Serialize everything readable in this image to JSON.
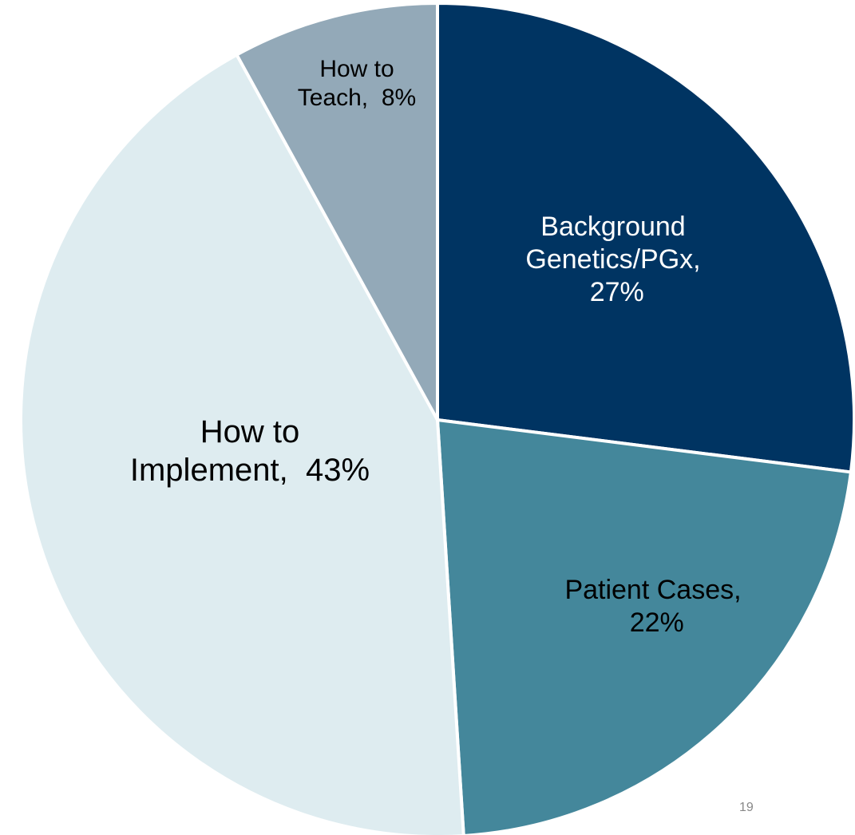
{
  "chart_data": {
    "type": "pie",
    "categories": [
      "Background Genetics/PGx,",
      "Patient Cases,",
      "How to Implement,",
      "How to Teach,"
    ],
    "values": [
      27,
      22,
      43,
      8
    ],
    "value_labels": [
      "27%",
      "22%",
      "43%",
      "8%"
    ],
    "colors": [
      "#003462",
      "#44879b",
      "#deecf0",
      "#93a9b8"
    ],
    "label_colors": [
      "#ffffff",
      "#000000",
      "#000000",
      "#000000"
    ]
  },
  "page_number": "19"
}
